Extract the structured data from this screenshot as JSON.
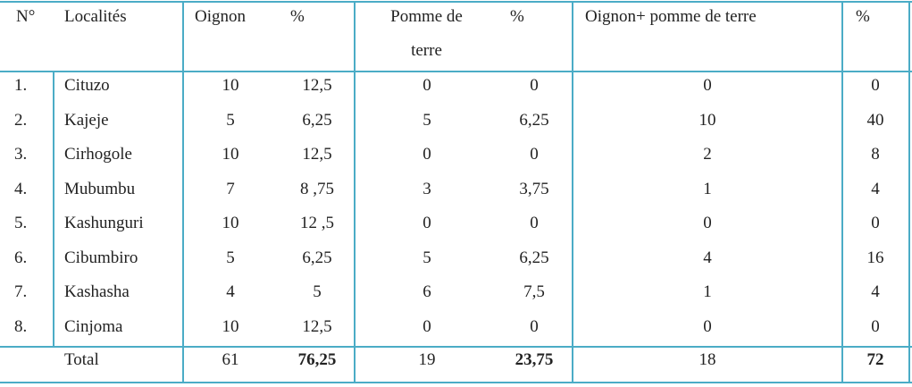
{
  "table": {
    "header": [
      "N°",
      "Localités",
      "Oignon",
      "%",
      "Pomme de terre",
      "%",
      "Oignon+ pomme de terre",
      "%"
    ],
    "rows": [
      [
        "1.",
        "Cituzo",
        "10",
        "12,5",
        "0",
        "0",
        "0",
        "0"
      ],
      [
        "2.",
        "Kajeje",
        "5",
        "6,25",
        "5",
        "6,25",
        "10",
        "40"
      ],
      [
        "3.",
        "Cirhogole",
        "10",
        "12,5",
        "0",
        "0",
        "2",
        "8"
      ],
      [
        "4.",
        "Mubumbu",
        "7",
        "8 ,75",
        "3",
        "3,75",
        "1",
        "4"
      ],
      [
        "5.",
        "Kashunguri",
        "10",
        "12 ,5",
        "0",
        "0",
        "0",
        "0"
      ],
      [
        "6.",
        "Cibumbiro",
        "5",
        "6,25",
        "5",
        "6,25",
        "4",
        "16"
      ],
      [
        "7.",
        "Kashasha",
        "4",
        "5",
        "6",
        "7,5",
        "1",
        "4"
      ],
      [
        "8.",
        "Cinjoma",
        "10",
        "12,5",
        "0",
        "0",
        "0",
        "0"
      ]
    ],
    "total": {
      "label": "Total",
      "values": [
        "61",
        "76,25",
        "19",
        "23,75",
        "18",
        "72"
      ]
    }
  }
}
